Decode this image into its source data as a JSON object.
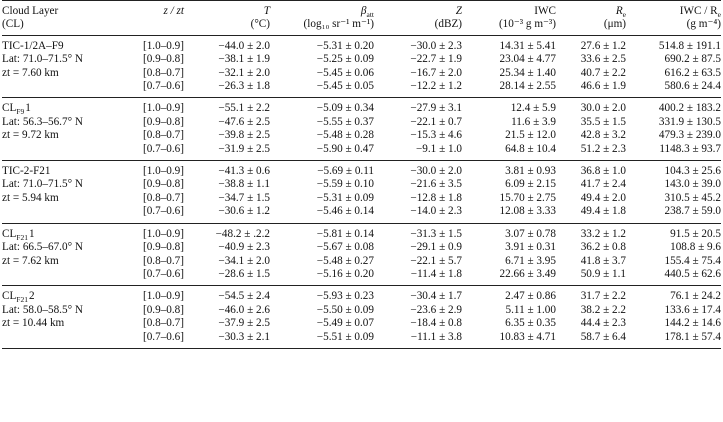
{
  "header": {
    "col1_line1": "Cloud Layer",
    "col1_line2": "(CL)",
    "col2_line1": "z / zt",
    "col3_line1": "T",
    "col3_line2": "(°C)",
    "col4_line1": "β",
    "col4_line1_sub": "att",
    "col4_line2": "(log₁₀ sr⁻¹ m⁻¹)",
    "col5_line1": "Z",
    "col5_line2": "(dBZ)",
    "col6_line1": "IWC",
    "col6_line2": "(10⁻³ g m⁻³)",
    "col7_line1": "R",
    "col7_line1_sub": "e",
    "col7_line2": "(μm)",
    "col8_line1": "IWC / R",
    "col8_line1_sub": "e",
    "col8_line2": "(g m⁻⁴)"
  },
  "groups": [
    {
      "label_lines": [
        "TIC-1/2A–F9",
        "Lat: 71.0–71.5° N",
        "zt = 7.60 km",
        ""
      ],
      "rows": [
        [
          "[1.0–0.9]",
          "−44.0 ± 2.0",
          "−5.31 ± 0.20",
          "−30.0 ± 2.3",
          "14.31 ± 5.41",
          "27.6 ± 1.2",
          "514.8 ± 191.1"
        ],
        [
          "[0.9–0.8]",
          "−38.1 ± 1.9",
          "−5.25 ± 0.09",
          "−22.7 ± 1.9",
          "23.04 ± 4.77",
          "33.6 ± 2.5",
          "690.2 ± 87.5"
        ],
        [
          "[0.8–0.7]",
          "−32.1 ± 2.0",
          "−5.45 ± 0.06",
          "−16.7 ± 2.0",
          "25.34 ± 1.40",
          "40.7 ± 2.2",
          "616.2 ± 63.5"
        ],
        [
          "[0.7–0.6]",
          "−26.3 ± 1.8",
          "−5.45 ± 0.05",
          "−12.2 ± 1.2",
          "28.14 ± 2.55",
          "46.6 ± 1.9",
          "580.6 ± 24.4"
        ]
      ]
    },
    {
      "label_lines": [
        "CL_F9 1",
        "Lat: 56.3–56.7° N",
        "zt = 9.72 km",
        ""
      ],
      "label_sub": "F9",
      "label_main": "CL",
      "label_tail": "1",
      "rows": [
        [
          "[1.0–0.9]",
          "−55.1 ± 2.2",
          "−5.09 ± 0.34",
          "−27.9 ± 3.1",
          "12.4 ± 5.9",
          "30.0 ± 2.0",
          "400.2 ± 183.2"
        ],
        [
          "[0.9–0.8]",
          "−47.6 ± 2.5",
          "−5.55 ± 0.37",
          "−22.1 ± 0.7",
          "11.6 ± 3.9",
          "35.5 ± 1.5",
          "331.9 ± 130.5"
        ],
        [
          "[0.8–0.7]",
          "−39.8 ± 2.5",
          "−5.48 ± 0.28",
          "−15.3 ± 4.6",
          "21.5 ± 12.0",
          "42.8 ± 3.2",
          "479.3 ± 239.0"
        ],
        [
          "[0.7–0.6]",
          "−31.9 ± 2.5",
          "−5.90 ± 0.47",
          "−9.1 ± 1.0",
          "64.8 ± 10.4",
          "51.2 ± 2.3",
          "1148.3 ± 93.7"
        ]
      ]
    },
    {
      "label_lines": [
        "TIC-2-F21",
        "Lat: 71.0–71.5° N",
        "zt = 5.94 km",
        ""
      ],
      "rows": [
        [
          "[1.0–0.9]",
          "−41.3 ± 0.6",
          "−5.69 ± 0.11",
          "−30.0 ± 2.0",
          "3.81 ± 0.93",
          "36.8 ± 1.0",
          "104.3 ± 25.6"
        ],
        [
          "[0.9–0.8]",
          "−38.8 ± 1.1",
          "−5.59 ± 0.10",
          "−21.6 ± 3.5",
          "6.09 ± 2.15",
          "41.7 ± 2.4",
          "143.0 ± 39.0"
        ],
        [
          "[0.8–0.7]",
          "−34.7 ± 1.5",
          "−5.31 ± 0.09",
          "−12.8 ± 1.8",
          "15.70 ± 2.75",
          "49.4 ± 2.0",
          "310.5 ± 45.2"
        ],
        [
          "[0.7–0.6]",
          "−30.6 ± 1.2",
          "−5.46 ± 0.14",
          "−14.0 ± 2.3",
          "12.08 ± 3.33",
          "49.4 ± 1.8",
          "238.7 ± 59.0"
        ]
      ]
    },
    {
      "label_lines": [
        "CL_F21 1",
        "Lat: 66.5–67.0° N",
        "zt = 7.62 km",
        ""
      ],
      "label_sub": "F21",
      "label_main": "CL",
      "label_tail": "1",
      "rows": [
        [
          "[1.0–0.9]",
          "−48.2 ± .2.2",
          "−5.81 ± 0.14",
          "−31.3 ± 1.5",
          "3.07 ± 0.78",
          "33.2 ± 1.2",
          "91.5 ± 20.5"
        ],
        [
          "[0.9–0.8]",
          "−40.9 ± 2.3",
          "−5.67 ± 0.08",
          "−29.1 ± 0.9",
          "3.91 ± 0.31",
          "36.2 ± 0.8",
          "108.8 ± 9.6"
        ],
        [
          "[0.8–0.7]",
          "−34.1 ± 2.0",
          "−5.48 ± 0.27",
          "−22.1 ± 5.7",
          "6.71 ± 3.95",
          "41.8 ± 3.7",
          "155.4 ± 75.4"
        ],
        [
          "[0.7–0.6]",
          "−28.6 ± 1.5",
          "−5.16 ± 0.20",
          "−11.4 ± 1.8",
          "22.66 ± 3.49",
          "50.9 ± 1.1",
          "440.5 ± 62.6"
        ]
      ]
    },
    {
      "label_lines": [
        "CL_F21 2",
        "Lat: 58.0–58.5° N",
        "zt = 10.44 km",
        ""
      ],
      "label_sub": "F21",
      "label_main": "CL",
      "label_tail": "2",
      "rows": [
        [
          "[1.0–0.9]",
          "−54.5 ± 2.4",
          "−5.93 ± 0.23",
          "−30.4 ± 1.7",
          "2.47 ± 0.86",
          "31.7 ± 2.2",
          "76.1 ± 24.2"
        ],
        [
          "[0.9–0.8]",
          "−46.0 ± 2.6",
          "−5.50 ± 0.09",
          "−23.6 ± 2.9",
          "5.11 ± 1.00",
          "38.2 ± 2.2",
          "133.6 ± 17.4"
        ],
        [
          "[0.8–0.7]",
          "−37.9 ± 2.5",
          "−5.49 ± 0.07",
          "−18.4 ± 0.8",
          "6.35 ± 0.35",
          "44.4 ± 2.3",
          "144.2 ± 14.6"
        ],
        [
          "[0.7–0.6]",
          "−30.3 ± 2.1",
          "−5.51 ± 0.09",
          "−11.1 ± 3.8",
          "10.83 ± 4.71",
          "58.7 ± 6.4",
          "178.1 ± 57.4"
        ]
      ]
    }
  ]
}
